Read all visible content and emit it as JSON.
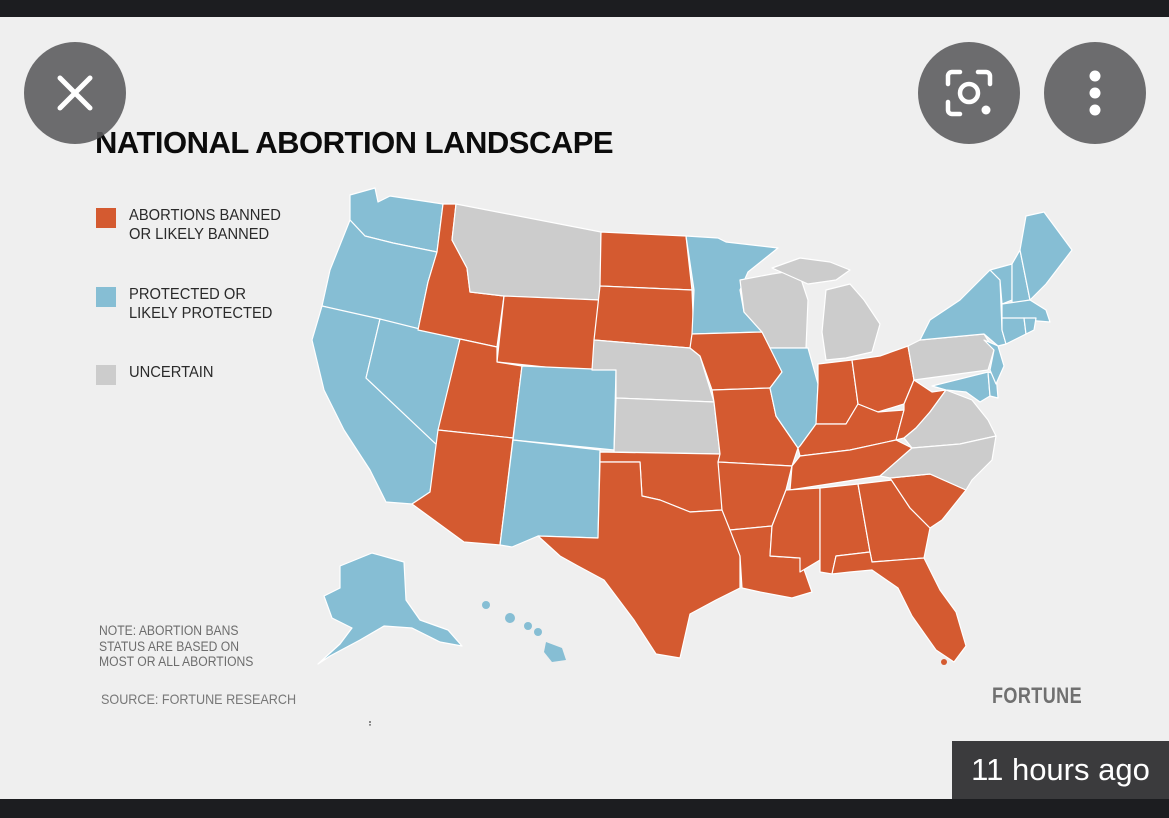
{
  "viewer": {
    "timestamp": "11 hours ago",
    "buttons": {
      "close": "close-icon",
      "lens": "lens-scan-icon",
      "more": "more-vert-icon"
    }
  },
  "graphic": {
    "title": "NATIONAL ABORTION LANDSCAPE",
    "legend": [
      {
        "label": "ABORTIONS BANNED\nOR LIKELY BANNED",
        "color": "#d45a30"
      },
      {
        "label": "PROTECTED OR\nLIKELY PROTECTED",
        "color": "#86bed4"
      },
      {
        "label": "UNCERTAIN",
        "color": "#cccccc"
      }
    ],
    "note": "NOTE: ABORTION BANS\nSTATUS ARE BASED ON\nMOST OR ALL ABORTIONS",
    "source": "SOURCE: FORTUNE RESEARCH",
    "brand": "FORTUNE",
    "status_colors": {
      "banned": "#d45a30",
      "protected": "#86bed4",
      "uncertain": "#cccccc"
    },
    "states": {
      "banned": [
        "ID",
        "WY",
        "UT",
        "AZ",
        "ND",
        "SD",
        "IA",
        "MO",
        "OK",
        "TX",
        "AR",
        "LA",
        "IN",
        "OH",
        "KY",
        "WV",
        "TN",
        "MS",
        "AL",
        "GA",
        "SC",
        "FL"
      ],
      "protected": [
        "WA",
        "OR",
        "CA",
        "NV",
        "CO",
        "NM",
        "MN",
        "IL",
        "NY",
        "NJ",
        "DE",
        "MD",
        "ME",
        "NH",
        "VT",
        "MA",
        "RI",
        "CT",
        "AK",
        "HI"
      ],
      "uncertain": [
        "MT",
        "NE",
        "KS",
        "WI",
        "MI",
        "PA",
        "VA",
        "NC"
      ]
    }
  }
}
